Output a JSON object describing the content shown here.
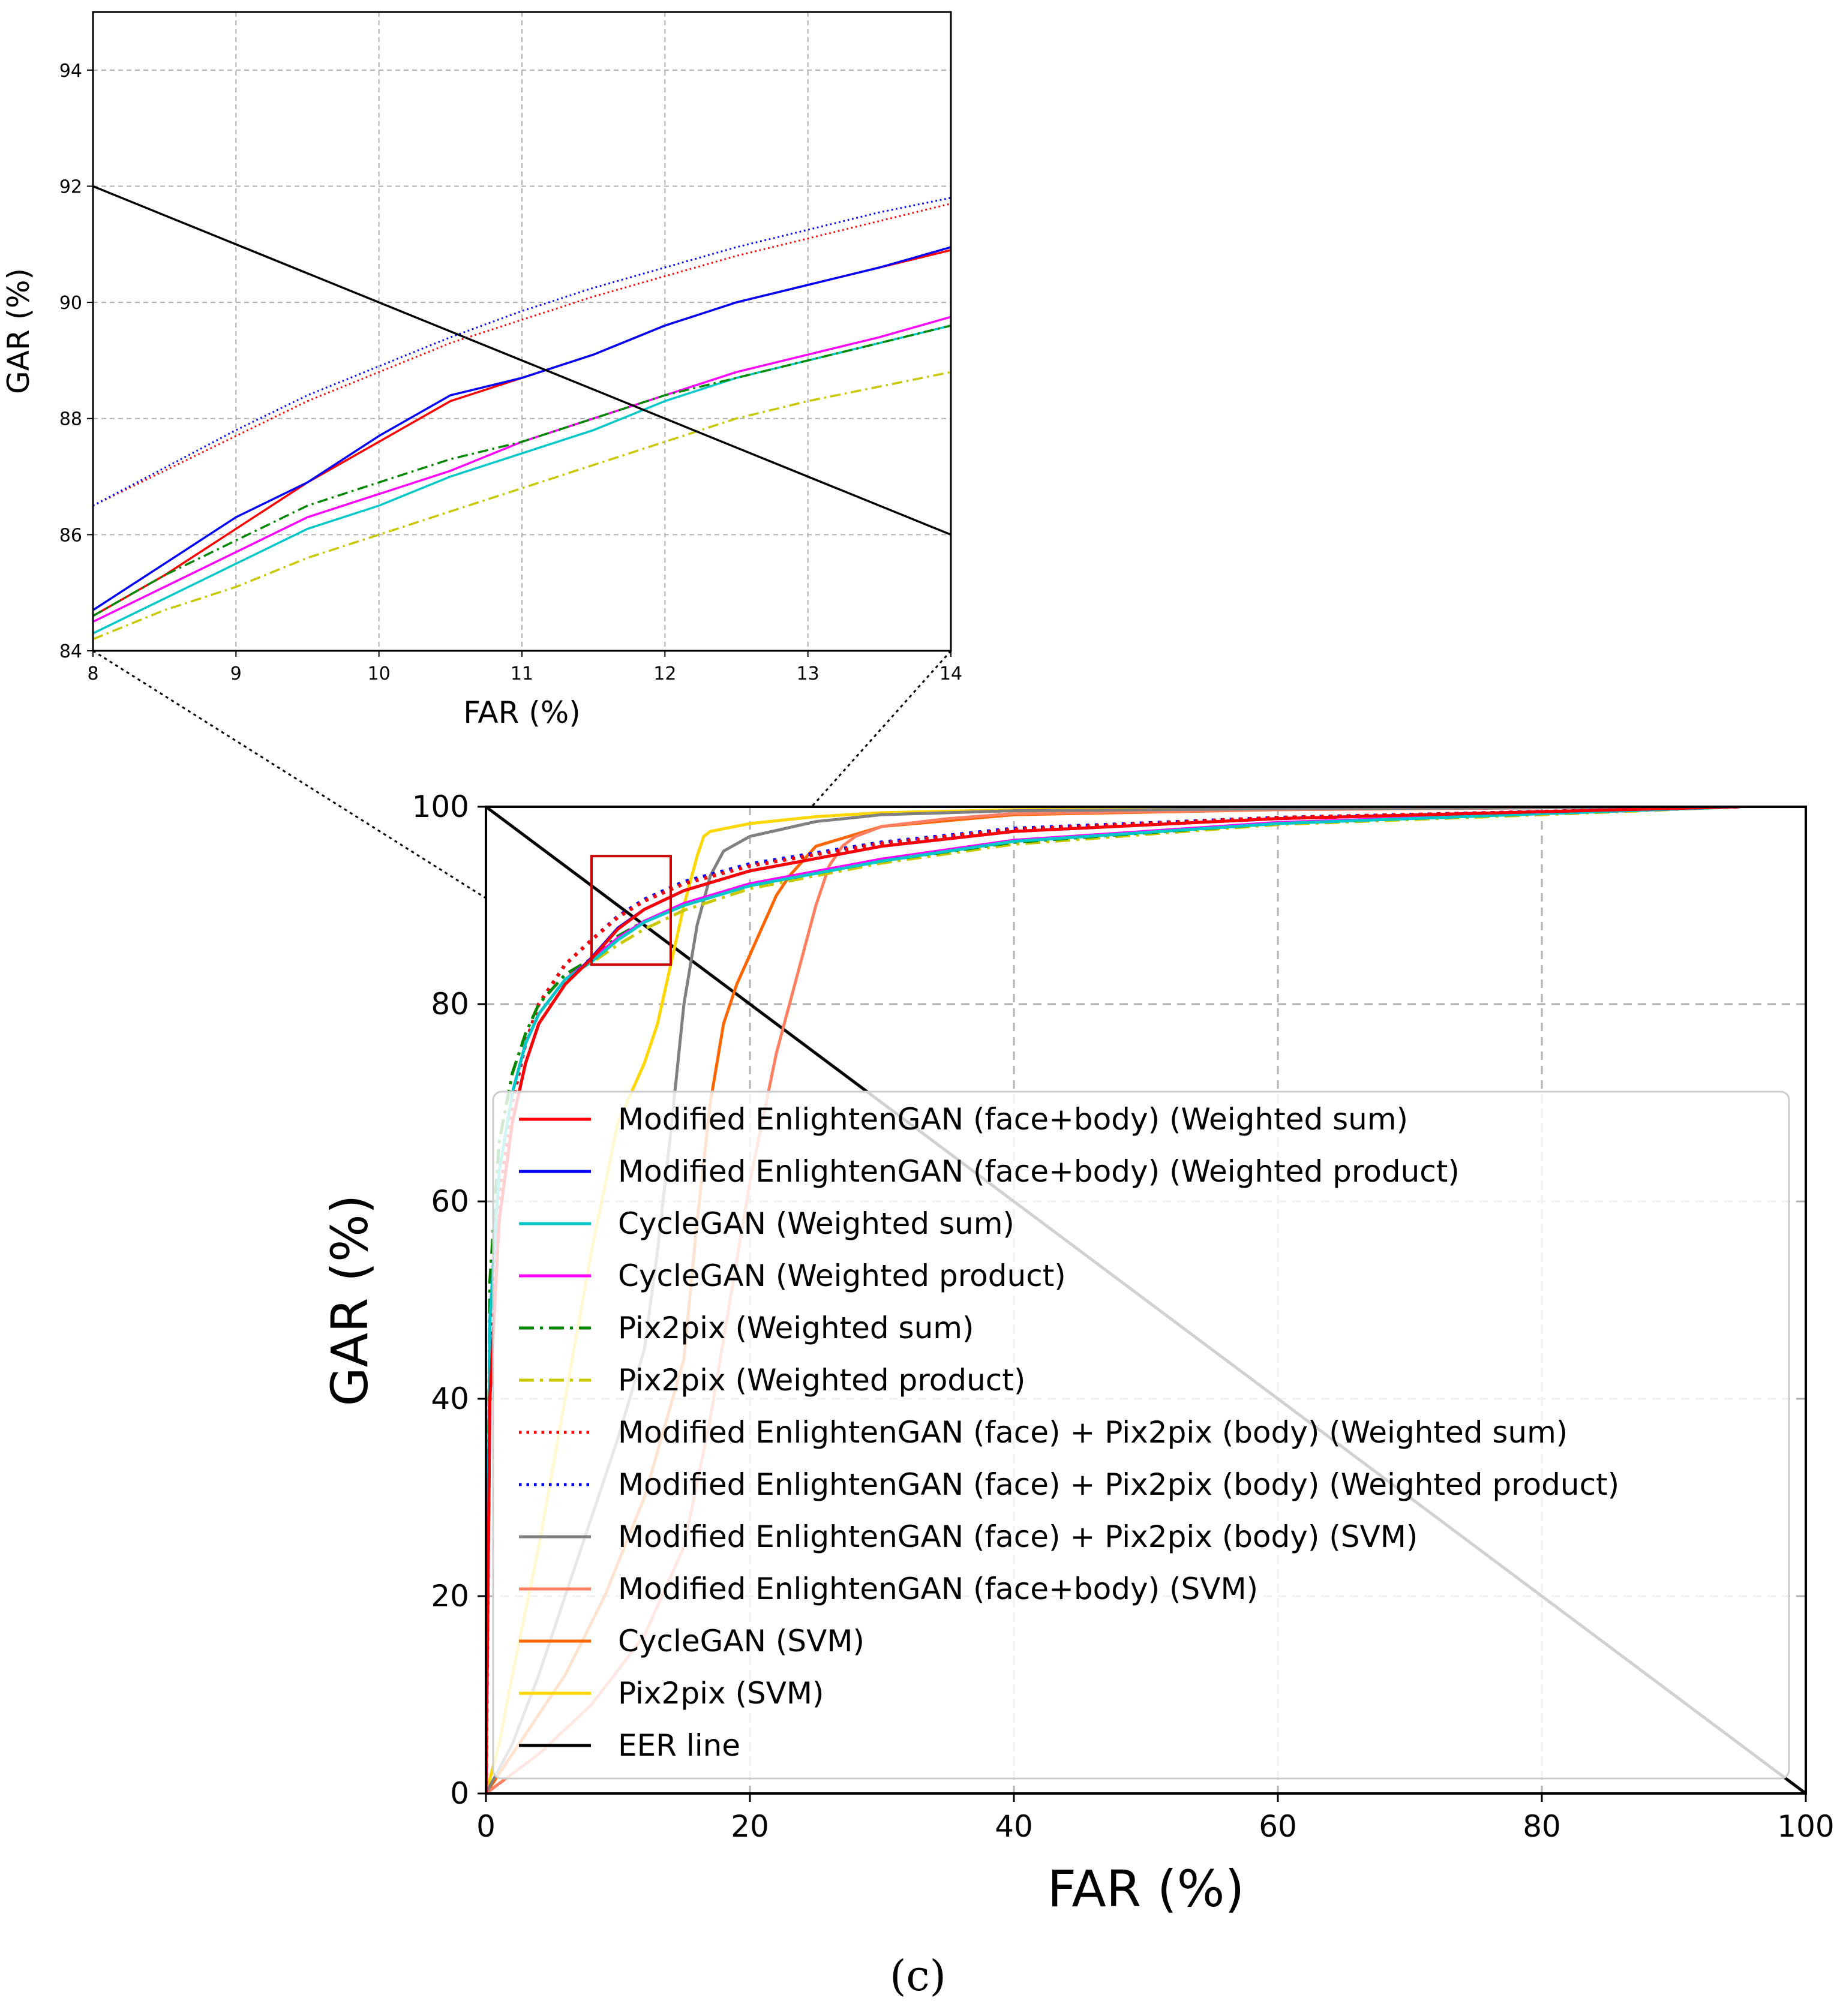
{
  "caption": "(c)",
  "chart_data": [
    {
      "type": "line",
      "role": "zoomed inset",
      "xlabel": "FAR (%)",
      "ylabel": "GAR (%)",
      "xlim": [
        8,
        14
      ],
      "ylim": [
        84,
        95
      ],
      "xticks": [
        8,
        9,
        10,
        11,
        12,
        13,
        14
      ],
      "yticks": [
        84,
        86,
        88,
        90,
        92,
        94
      ],
      "grid": true,
      "series": [
        {
          "name": "Modified EnlightenGAN (face+body) (Weighted sum)",
          "color": "#ff0000",
          "dash": "solid",
          "x": [
            8,
            8.5,
            9,
            9.5,
            10,
            10.5,
            11,
            11.5,
            12,
            12.5,
            13,
            13.5,
            14
          ],
          "y": [
            84.6,
            85.3,
            86.1,
            86.9,
            87.6,
            88.3,
            88.7,
            89.1,
            89.6,
            90.0,
            90.3,
            90.6,
            90.9
          ]
        },
        {
          "name": "Modified EnlightenGAN (face+body) (Weighted product)",
          "color": "#0000ff",
          "dash": "solid",
          "x": [
            8,
            8.5,
            9,
            9.5,
            10,
            10.5,
            11,
            11.5,
            12,
            12.5,
            13,
            13.5,
            14
          ],
          "y": [
            84.7,
            85.5,
            86.3,
            86.9,
            87.7,
            88.4,
            88.7,
            89.1,
            89.6,
            90.0,
            90.3,
            90.6,
            90.95
          ]
        },
        {
          "name": "CycleGAN (Weighted sum)",
          "color": "#00c8c8",
          "dash": "solid",
          "x": [
            8,
            8.5,
            9,
            9.5,
            10,
            10.5,
            11,
            11.5,
            12,
            12.5,
            13,
            13.5,
            14
          ],
          "y": [
            84.3,
            84.9,
            85.5,
            86.1,
            86.5,
            87.0,
            87.4,
            87.8,
            88.3,
            88.7,
            89.0,
            89.3,
            89.6
          ]
        },
        {
          "name": "CycleGAN (Weighted product)",
          "color": "#ff00ff",
          "dash": "solid",
          "x": [
            8,
            8.5,
            9,
            9.5,
            10,
            10.5,
            11,
            11.5,
            12,
            12.5,
            13,
            13.5,
            14
          ],
          "y": [
            84.5,
            85.1,
            85.7,
            86.3,
            86.7,
            87.1,
            87.6,
            88.0,
            88.4,
            88.8,
            89.1,
            89.4,
            89.75
          ]
        },
        {
          "name": "Pix2pix (Weighted sum)",
          "color": "#008800",
          "dash": "dashdot",
          "x": [
            8,
            8.5,
            9,
            9.5,
            10,
            10.5,
            11,
            11.5,
            12,
            12.5,
            13,
            13.5,
            14
          ],
          "y": [
            84.6,
            85.3,
            85.9,
            86.5,
            86.9,
            87.3,
            87.6,
            88.0,
            88.4,
            88.7,
            89.0,
            89.3,
            89.6
          ]
        },
        {
          "name": "Pix2pix (Weighted product)",
          "color": "#c8c800",
          "dash": "dashdot",
          "x": [
            8,
            8.5,
            9,
            9.5,
            10,
            10.5,
            11,
            11.5,
            12,
            12.5,
            13,
            13.5,
            14
          ],
          "y": [
            84.2,
            84.7,
            85.1,
            85.6,
            86.0,
            86.4,
            86.8,
            87.2,
            87.6,
            88.0,
            88.3,
            88.55,
            88.8
          ]
        },
        {
          "name": "Modified EnlightenGAN (face) + Pix2pix (body) (Weighted sum)",
          "color": "#ff0000",
          "dash": "dotted",
          "x": [
            8,
            8.5,
            9,
            9.5,
            10,
            10.5,
            11,
            11.5,
            12,
            12.5,
            13,
            13.5,
            14
          ],
          "y": [
            86.5,
            87.1,
            87.7,
            88.3,
            88.8,
            89.3,
            89.7,
            90.1,
            90.45,
            90.8,
            91.1,
            91.4,
            91.7
          ]
        },
        {
          "name": "Modified EnlightenGAN (face) + Pix2pix (body) (Weighted product)",
          "color": "#0000ff",
          "dash": "dotted",
          "x": [
            8,
            8.5,
            9,
            9.5,
            10,
            10.5,
            11,
            11.5,
            12,
            12.5,
            13,
            13.5,
            14
          ],
          "y": [
            86.5,
            87.15,
            87.8,
            88.4,
            88.9,
            89.4,
            89.85,
            90.25,
            90.6,
            90.95,
            91.25,
            91.55,
            91.8
          ]
        },
        {
          "name": "EER line",
          "color": "#000000",
          "dash": "solid",
          "x": [
            8,
            14
          ],
          "y": [
            92,
            86
          ]
        }
      ]
    },
    {
      "type": "line",
      "role": "main ROC",
      "xlabel": "FAR (%)",
      "ylabel": "GAR (%)",
      "xlim": [
        0,
        100
      ],
      "ylim": [
        0,
        100
      ],
      "xticks": [
        0,
        20,
        40,
        60,
        80,
        100
      ],
      "yticks": [
        0,
        20,
        40,
        60,
        80,
        100
      ],
      "grid": true,
      "zoom_region": {
        "x": [
          8,
          14
        ],
        "y": [
          84,
          95
        ]
      },
      "legend_position": "lower-right",
      "series": [
        {
          "name": "Modified EnlightenGAN (face+body) (Weighted sum)",
          "color": "#ff0000",
          "dash": "solid",
          "x": [
            0,
            0.3,
            1,
            2,
            3,
            4,
            6,
            8,
            10,
            12,
            15,
            20,
            30,
            40,
            60,
            80,
            95
          ],
          "y": [
            0,
            40,
            58,
            68,
            74,
            78,
            82,
            84.6,
            87.6,
            89.6,
            91.5,
            93.5,
            96,
            97.5,
            98.8,
            99.5,
            100
          ]
        },
        {
          "name": "Modified EnlightenGAN (face+body) (Weighted product)",
          "color": "#0000ff",
          "dash": "solid",
          "x": [
            0,
            0.3,
            1,
            2,
            3,
            4,
            6,
            8,
            10,
            12,
            15,
            20,
            30,
            40,
            60,
            80,
            95
          ],
          "y": [
            0,
            40,
            58,
            68,
            74,
            78,
            82,
            84.7,
            87.7,
            89.6,
            91.5,
            93.5,
            96,
            97.5,
            98.8,
            99.5,
            100
          ]
        },
        {
          "name": "CycleGAN (Weighted sum)",
          "color": "#00c8c8",
          "dash": "solid",
          "x": [
            0,
            0.3,
            1,
            2,
            3,
            4,
            6,
            8,
            10,
            12,
            15,
            20,
            30,
            40,
            60,
            80,
            95
          ],
          "y": [
            0,
            48,
            63,
            71,
            76,
            79,
            82.5,
            84.3,
            86.5,
            88.3,
            90,
            92,
            94.5,
            96.5,
            98.3,
            99.3,
            100
          ]
        },
        {
          "name": "CycleGAN (Weighted product)",
          "color": "#ff00ff",
          "dash": "solid",
          "x": [
            0,
            0.3,
            1,
            2,
            3,
            4,
            6,
            8,
            10,
            12,
            15,
            20,
            30,
            40,
            60,
            80,
            95
          ],
          "y": [
            0,
            48,
            63,
            71,
            76,
            79,
            82.5,
            84.5,
            86.7,
            88.4,
            90.2,
            92.2,
            94.7,
            96.6,
            98.4,
            99.3,
            100
          ]
        },
        {
          "name": "Pix2pix (Weighted sum)",
          "color": "#008800",
          "dash": "dashdot",
          "x": [
            0,
            0.3,
            1,
            2,
            3,
            4,
            6,
            8,
            10,
            12,
            15,
            20,
            30,
            40,
            60,
            80,
            95
          ],
          "y": [
            0,
            52,
            66,
            73,
            77,
            80,
            83,
            84.6,
            86.9,
            88.4,
            90,
            92,
            94.5,
            96.4,
            98.3,
            99.3,
            100
          ]
        },
        {
          "name": "Pix2pix (Weighted product)",
          "color": "#c8c800",
          "dash": "dashdot",
          "x": [
            0,
            0.3,
            1,
            2,
            3,
            4,
            6,
            8,
            10,
            12,
            15,
            20,
            30,
            40,
            60,
            80,
            95
          ],
          "y": [
            0,
            52,
            66,
            73,
            77,
            80,
            83,
            84.2,
            86.0,
            87.6,
            89.5,
            91.7,
            94.3,
            96.2,
            98.2,
            99.2,
            100
          ]
        },
        {
          "name": "Modified EnlightenGAN (face) + Pix2pix (body) (Weighted sum)",
          "color": "#ff0000",
          "dash": "dotted",
          "x": [
            0,
            0.3,
            1,
            2,
            3,
            4,
            6,
            8,
            10,
            12,
            15,
            20,
            30,
            40,
            60,
            80,
            95
          ],
          "y": [
            0,
            45,
            60,
            70,
            76,
            80,
            84,
            86.5,
            88.8,
            90.45,
            92.2,
            94,
            96.3,
            97.7,
            98.9,
            99.5,
            100
          ]
        },
        {
          "name": "Modified EnlightenGAN (face) + Pix2pix (body) (Weighted product)",
          "color": "#0000ff",
          "dash": "dotted",
          "x": [
            0,
            0.3,
            1,
            2,
            3,
            4,
            6,
            8,
            10,
            12,
            15,
            20,
            30,
            40,
            60,
            80,
            95
          ],
          "y": [
            0,
            45,
            60,
            70,
            76,
            80,
            84,
            86.5,
            88.9,
            90.6,
            92.4,
            94.2,
            96.4,
            97.8,
            98.9,
            99.5,
            100
          ]
        },
        {
          "name": "Modified EnlightenGAN (face) + Pix2pix (body) (SVM)",
          "color": "#808080",
          "dash": "solid",
          "x": [
            0,
            2,
            4,
            6,
            8,
            10,
            12,
            13,
            14,
            15,
            16,
            17,
            18,
            20,
            25,
            30,
            40,
            60,
            80,
            95
          ],
          "y": [
            0,
            5,
            12,
            20,
            28,
            36,
            45,
            55,
            67,
            80,
            88,
            93,
            95.5,
            97,
            98.5,
            99.2,
            99.6,
            99.8,
            99.9,
            100
          ]
        },
        {
          "name": "Modified EnlightenGAN (face+body) (SVM)",
          "color": "#ff7f60",
          "dash": "solid",
          "x": [
            0,
            4,
            8,
            12,
            15,
            17,
            19,
            20,
            22,
            24,
            25,
            26,
            27,
            28,
            30,
            35,
            40,
            60,
            80,
            95
          ],
          "y": [
            0,
            4,
            9,
            16,
            25,
            38,
            54,
            62,
            75,
            85,
            90,
            94,
            96,
            97,
            98,
            98.8,
            99.3,
            99.7,
            99.9,
            100
          ]
        },
        {
          "name": "CycleGAN (SVM)",
          "color": "#ff6600",
          "dash": "solid",
          "x": [
            0,
            3,
            6,
            9,
            12,
            15,
            16,
            17,
            18,
            19,
            20,
            21,
            22,
            23,
            25,
            30,
            40,
            60,
            80,
            95
          ],
          "y": [
            0,
            6,
            12,
            20,
            30,
            44,
            58,
            70,
            78,
            82,
            85,
            88,
            91,
            93,
            96,
            98,
            99.2,
            99.7,
            99.9,
            100
          ]
        },
        {
          "name": "Pix2pix (SVM)",
          "color": "#ffd700",
          "dash": "solid",
          "x": [
            0,
            1,
            2,
            4,
            6,
            8,
            10,
            12,
            13,
            14,
            15,
            16,
            16.5,
            17,
            20,
            25,
            30,
            40,
            60,
            95
          ],
          "y": [
            0,
            5,
            12,
            25,
            40,
            55,
            68,
            74,
            78,
            84,
            90,
            95,
            97,
            97.5,
            98.3,
            99,
            99.4,
            99.7,
            99.9,
            100
          ]
        },
        {
          "name": "EER line",
          "color": "#000000",
          "dash": "solid",
          "x": [
            0,
            100
          ],
          "y": [
            100,
            0
          ]
        }
      ]
    }
  ]
}
